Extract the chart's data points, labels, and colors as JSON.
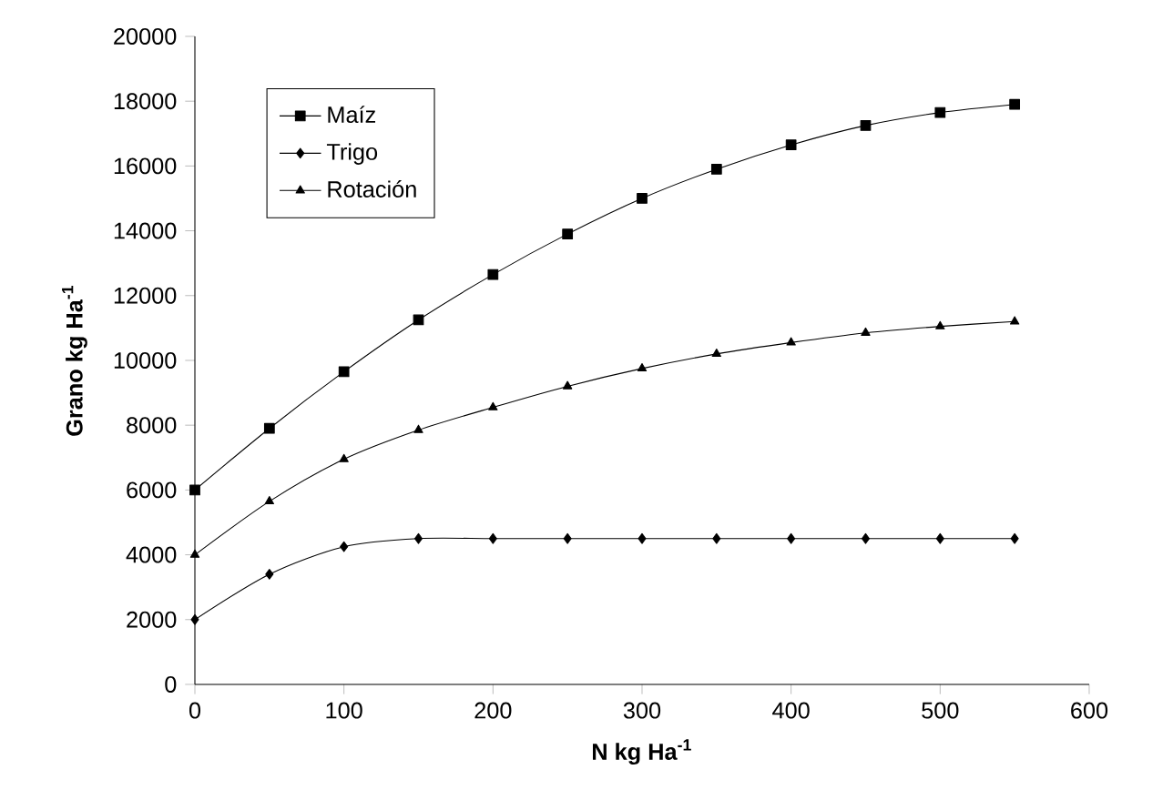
{
  "chart_data": {
    "type": "line",
    "xlabel": "N kg Ha$^{-1}$",
    "ylabel": "Grano kg Ha$^{-1}$",
    "x": [
      0,
      50,
      100,
      150,
      200,
      250,
      300,
      350,
      400,
      450,
      500,
      550
    ],
    "series": [
      {
        "name": "Maíz",
        "color": "#000000",
        "marker": "square",
        "values": [
          6000,
          7900,
          9650,
          11250,
          12650,
          13900,
          15000,
          15900,
          16650,
          17250,
          17650,
          17900
        ]
      },
      {
        "name": "Trigo",
        "color": "#000000",
        "marker": "diamond",
        "values": [
          2000,
          3400,
          4250,
          4500,
          4500,
          4500,
          4500,
          4500,
          4500,
          4500,
          4500,
          4500
        ]
      },
      {
        "name": "Rotación",
        "color": "#000000",
        "marker": "triangle",
        "values": [
          4000,
          5650,
          6950,
          7850,
          8550,
          9200,
          9750,
          10200,
          10550,
          10850,
          11050,
          11200
        ]
      }
    ],
    "xlim": [
      0,
      600
    ],
    "ylim": [
      0,
      20000
    ],
    "xticks": [
      0,
      100,
      200,
      300,
      400,
      500,
      600
    ],
    "yticks": [
      0,
      2000,
      4000,
      6000,
      8000,
      10000,
      12000,
      14000,
      16000,
      18000,
      20000
    ],
    "grid": false,
    "legend": "top left",
    "line_style": "solid"
  }
}
